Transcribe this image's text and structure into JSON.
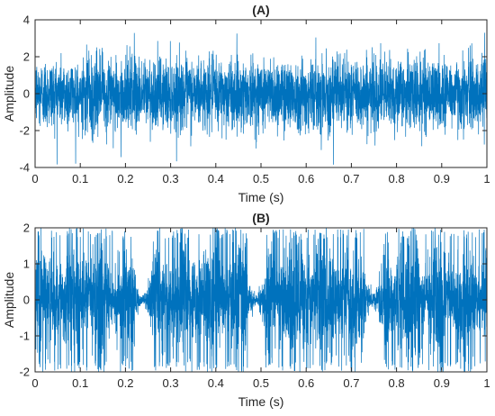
{
  "chart_data": [
    {
      "type": "line",
      "title": "(A)",
      "xlabel": "Time (s)",
      "ylabel": "Amplitude",
      "xlim": [
        0,
        1
      ],
      "ylim": [
        -4,
        4
      ],
      "xticks": [
        "0",
        "0.1",
        "0.2",
        "0.3",
        "0.4",
        "0.5",
        "0.6",
        "0.7",
        "0.8",
        "0.9",
        "1"
      ],
      "yticks": [
        "-4",
        "-2",
        "0",
        "2",
        "4"
      ],
      "grid": false,
      "line_color": "#0072BD",
      "series": [
        {
          "x_start": 0,
          "x_end": 1,
          "num_points": 4000,
          "signal": "white noise",
          "mean": 0,
          "std": 0.95,
          "min": -3.9,
          "max": 3.3
        }
      ]
    },
    {
      "type": "line",
      "title": "(B)",
      "xlabel": "Time (s)",
      "ylabel": "Amplitude",
      "xlim": [
        0,
        1
      ],
      "ylim": [
        -2,
        2
      ],
      "xticks": [
        "0",
        "0.1",
        "0.2",
        "0.3",
        "0.4",
        "0.5",
        "0.6",
        "0.7",
        "0.8",
        "0.9",
        "1"
      ],
      "yticks": [
        "-2",
        "-1",
        "0",
        "1",
        "2"
      ],
      "grid": false,
      "line_color": "#0072BD",
      "series": [
        {
          "x_start": 0,
          "x_end": 1,
          "num_points": 4000,
          "signal": "burst-modulated noise",
          "min": -2,
          "max": 2,
          "quiet_gaps": [
            0.24,
            0.49,
            0.75
          ]
        }
      ]
    }
  ]
}
